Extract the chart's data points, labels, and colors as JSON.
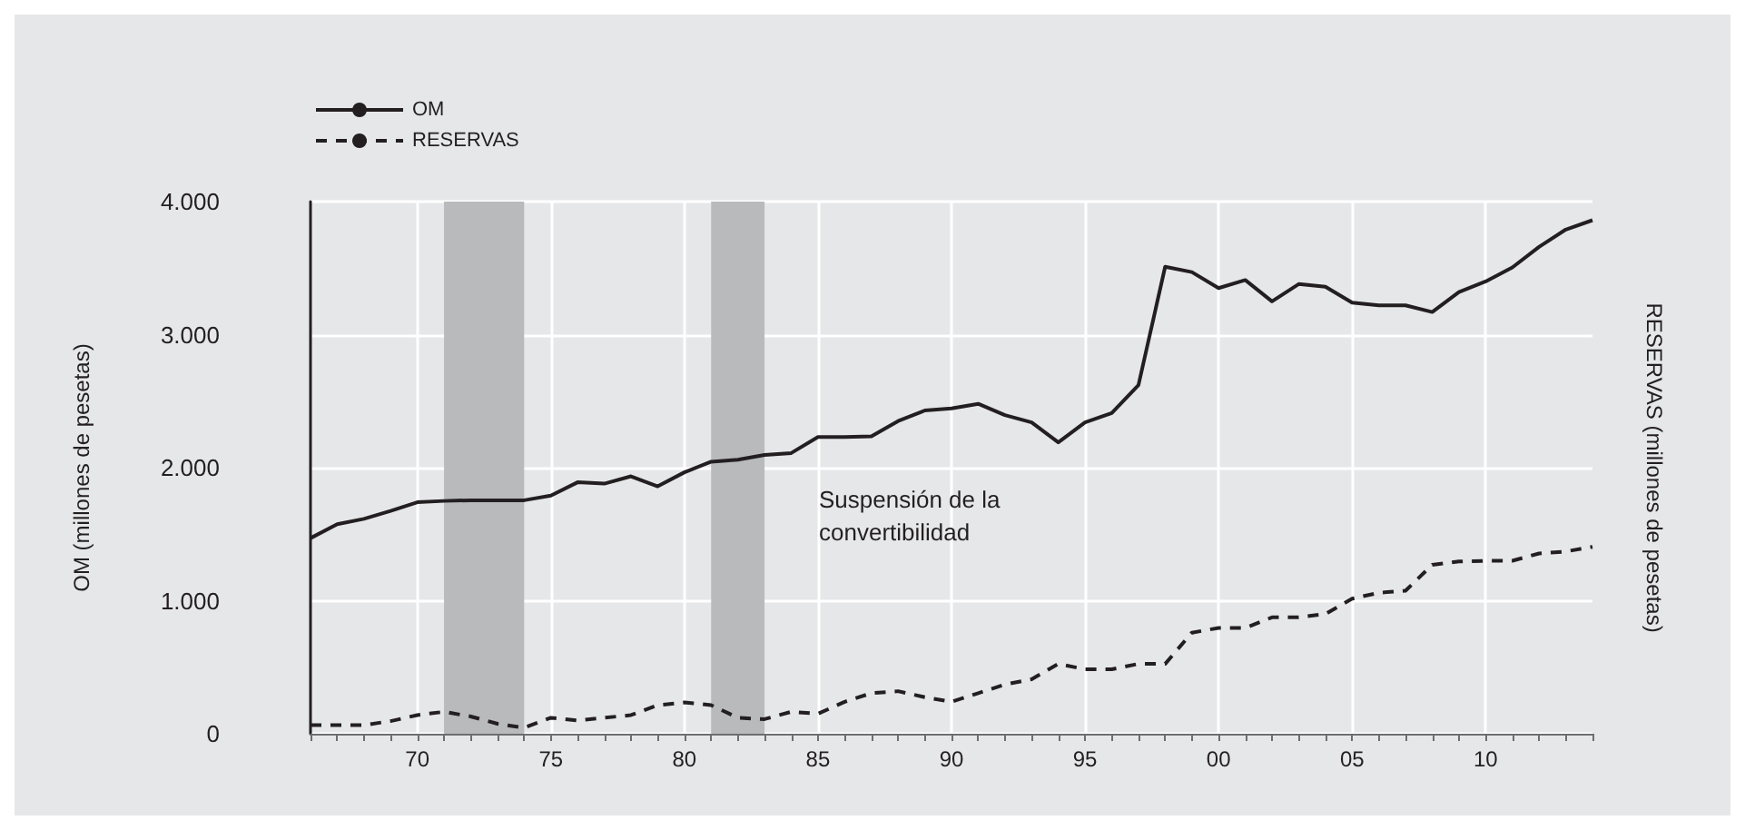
{
  "chart_data": {
    "type": "line",
    "ylabel": "OM (millones de pesetas)",
    "y2label": "RESERVAS (millones de pesetas)",
    "x": [
      1966,
      1967,
      1968,
      1969,
      1970,
      1971,
      1972,
      1973,
      1974,
      1975,
      1976,
      1977,
      1978,
      1979,
      1980,
      1981,
      1982,
      1983,
      1984,
      1985,
      1986,
      1987,
      1988,
      1989,
      1990,
      1991,
      1992,
      1993,
      1994,
      1995,
      1996,
      1997,
      1998,
      1999,
      2000,
      2001,
      2002,
      2003,
      2004,
      2005,
      2006,
      2007,
      2008,
      2009,
      2010,
      2011,
      2012,
      2013,
      2014
    ],
    "series": [
      {
        "name": "OM",
        "color": "#231f20",
        "line_style": "solid",
        "values": [
          1470,
          1575,
          1615,
          1675,
          1740,
          1750,
          1755,
          1755,
          1755,
          1790,
          1890,
          1880,
          1935,
          1860,
          1965,
          2045,
          2060,
          2095,
          2110,
          2230,
          2230,
          2235,
          2350,
          2430,
          2445,
          2480,
          2395,
          2340,
          2190,
          2340,
          2410,
          2620,
          3510,
          3470,
          3350,
          3410,
          3250,
          3380,
          3360,
          3240,
          3220,
          3220,
          3170,
          3320,
          3400,
          3505,
          3660,
          3790,
          3860
        ]
      },
      {
        "name": "RESERVAS",
        "color": "#231f20",
        "line_style": "dashed",
        "values": [
          65,
          65,
          65,
          95,
          140,
          165,
          130,
          75,
          45,
          120,
          100,
          120,
          140,
          215,
          235,
          215,
          120,
          110,
          165,
          150,
          240,
          305,
          320,
          275,
          240,
          305,
          370,
          410,
          525,
          485,
          485,
          525,
          525,
          760,
          795,
          795,
          875,
          875,
          900,
          1015,
          1060,
          1075,
          1270,
          1295,
          1300,
          1300,
          1355,
          1370,
          1405
        ]
      }
    ],
    "xlim": [
      1966,
      2014
    ],
    "xticks": [
      {
        "value": 1966,
        "label": null
      },
      {
        "value": 1967,
        "label": null
      },
      {
        "value": 1968,
        "label": null
      },
      {
        "value": 1969,
        "label": null
      },
      {
        "value": 1970,
        "label": "70"
      },
      {
        "value": 1971,
        "label": null
      },
      {
        "value": 1972,
        "label": null
      },
      {
        "value": 1973,
        "label": null
      },
      {
        "value": 1974,
        "label": null
      },
      {
        "value": 1975,
        "label": "75"
      },
      {
        "value": 1976,
        "label": null
      },
      {
        "value": 1977,
        "label": null
      },
      {
        "value": 1978,
        "label": null
      },
      {
        "value": 1979,
        "label": null
      },
      {
        "value": 1980,
        "label": "80"
      },
      {
        "value": 1981,
        "label": null
      },
      {
        "value": 1982,
        "label": null
      },
      {
        "value": 1983,
        "label": null
      },
      {
        "value": 1984,
        "label": null
      },
      {
        "value": 1985,
        "label": "85"
      },
      {
        "value": 1986,
        "label": null
      },
      {
        "value": 1987,
        "label": null
      },
      {
        "value": 1988,
        "label": null
      },
      {
        "value": 1989,
        "label": null
      },
      {
        "value": 1990,
        "label": "90"
      },
      {
        "value": 1991,
        "label": null
      },
      {
        "value": 1992,
        "label": null
      },
      {
        "value": 1993,
        "label": null
      },
      {
        "value": 1994,
        "label": null
      },
      {
        "value": 1995,
        "label": "95"
      },
      {
        "value": 1996,
        "label": null
      },
      {
        "value": 1997,
        "label": null
      },
      {
        "value": 1998,
        "label": null
      },
      {
        "value": 1999,
        "label": null
      },
      {
        "value": 2000,
        "label": "00"
      },
      {
        "value": 2001,
        "label": null
      },
      {
        "value": 2002,
        "label": null
      },
      {
        "value": 2003,
        "label": null
      },
      {
        "value": 2004,
        "label": null
      },
      {
        "value": 2005,
        "label": "05"
      },
      {
        "value": 2006,
        "label": null
      },
      {
        "value": 2007,
        "label": null
      },
      {
        "value": 2008,
        "label": null
      },
      {
        "value": 2009,
        "label": null
      },
      {
        "value": 2010,
        "label": "10"
      },
      {
        "value": 2011,
        "label": null
      },
      {
        "value": 2012,
        "label": null
      },
      {
        "value": 2013,
        "label": null
      },
      {
        "value": 2014,
        "label": null
      }
    ],
    "ylim": [
      0,
      4000
    ],
    "yticks": [
      0,
      {
        "value": 1000,
        "label": "1.000"
      },
      {
        "value": 2000,
        "label": "2.000"
      },
      {
        "value": 3000,
        "label": "3.000"
      },
      {
        "value": 4000,
        "label": "4.000"
      }
    ],
    "bands": [
      {
        "axis": "x",
        "from": 1971,
        "to": 1974,
        "color": "#b9babc"
      },
      {
        "axis": "x",
        "from": 1981,
        "to": 1983,
        "color": "#b9babc"
      }
    ],
    "annotations": [
      "Suspensión de la convertibilidad"
    ],
    "grid": true,
    "legend": "top left",
    "marker": "none"
  }
}
